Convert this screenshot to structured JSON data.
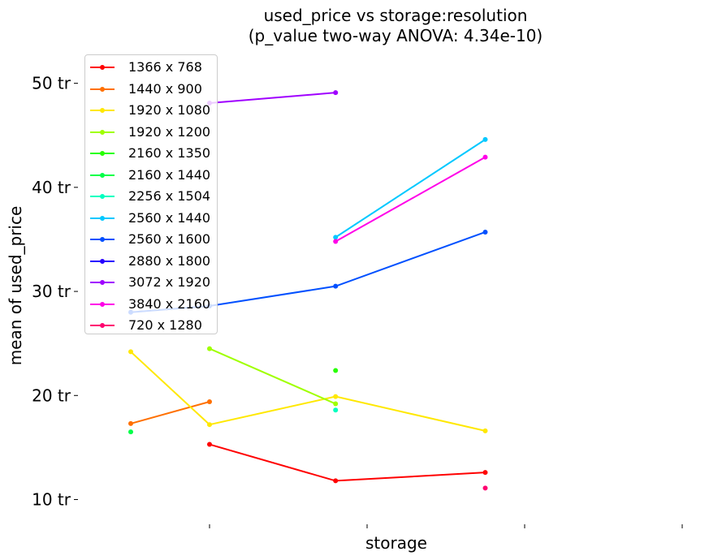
{
  "chart_data": {
    "type": "line",
    "title": "used_price vs storage:resolution",
    "subtitle": "(p_value two-way ANOVA: 4.34e-10)",
    "xlabel": "storage",
    "ylabel": "mean of used_price",
    "y_ticks": [
      {
        "value": 10,
        "label": "10 tr"
      },
      {
        "value": 20,
        "label": "20 tr"
      },
      {
        "value": 30,
        "label": "30 tr"
      },
      {
        "value": 40,
        "label": "40 tr"
      },
      {
        "value": 50,
        "label": "50 tr"
      }
    ],
    "ylim": [
      7.7,
      52.7
    ],
    "categories": [
      "",
      "",
      "",
      "",
      "",
      "",
      "",
      ""
    ],
    "x_ticks_shown": [
      1,
      3,
      5,
      7
    ],
    "grid": false,
    "legend_position": "upper-left",
    "series": [
      {
        "name": "1366 x 768",
        "color": "#ff0000",
        "points": [
          [
            1,
            15.3
          ],
          [
            2.6,
            11.8
          ],
          [
            4.5,
            12.6
          ]
        ]
      },
      {
        "name": "1440 x 900",
        "color": "#ff7000",
        "points": [
          [
            0,
            17.3
          ],
          [
            1,
            19.4
          ]
        ]
      },
      {
        "name": "1920 x 1080",
        "color": "#ffe800",
        "points": [
          [
            0,
            24.2
          ],
          [
            1,
            17.2
          ],
          [
            2.6,
            19.9
          ],
          [
            4.5,
            16.6
          ]
        ]
      },
      {
        "name": "1920 x 1200",
        "color": "#a0ff00",
        "points": [
          [
            1,
            24.5
          ],
          [
            2.6,
            19.2
          ]
        ]
      },
      {
        "name": "2160 x 1350",
        "color": "#28ff00",
        "points": [
          [
            2.6,
            22.4
          ]
        ]
      },
      {
        "name": "2160 x 1440",
        "color": "#00ff48",
        "points": [
          [
            0,
            16.5
          ]
        ]
      },
      {
        "name": "2256 x 1504",
        "color": "#00ffc0",
        "points": [
          [
            2.6,
            18.6
          ]
        ]
      },
      {
        "name": "2560 x 1440",
        "color": "#00c8ff",
        "points": [
          [
            2.6,
            35.2
          ],
          [
            4.5,
            44.6
          ]
        ]
      },
      {
        "name": "2560 x 1600",
        "color": "#0050ff",
        "points": [
          [
            0,
            28.0
          ],
          [
            1,
            28.6
          ],
          [
            2.6,
            30.5
          ],
          [
            4.5,
            35.7
          ]
        ]
      },
      {
        "name": "2880 x 1800",
        "color": "#2800ff",
        "points": []
      },
      {
        "name": "3072 x 1920",
        "color": "#a000ff",
        "points": [
          [
            1,
            48.1
          ],
          [
            2.6,
            49.1
          ]
        ]
      },
      {
        "name": "3840 x 2160",
        "color": "#ff00e8",
        "points": [
          [
            2.6,
            34.8
          ],
          [
            4.5,
            42.9
          ]
        ]
      },
      {
        "name": "720 x 1280",
        "color": "#ff0070",
        "points": [
          [
            4.5,
            11.1
          ]
        ]
      }
    ]
  }
}
